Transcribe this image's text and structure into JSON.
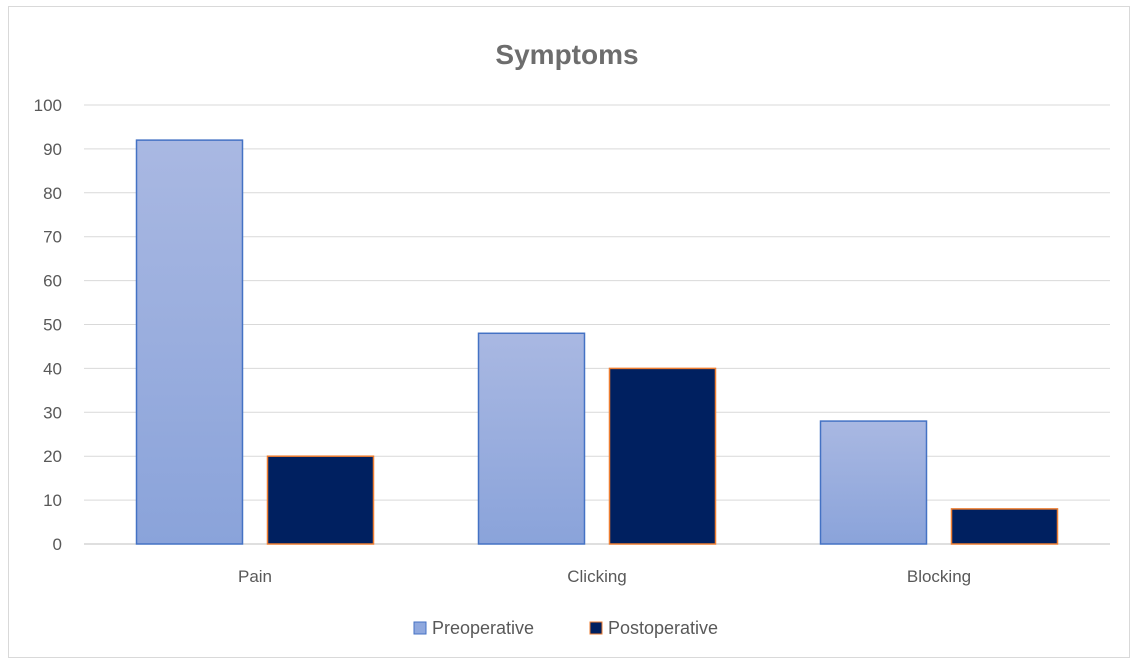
{
  "chart_data": {
    "type": "bar",
    "title": "Symptoms",
    "xlabel": "",
    "ylabel": "",
    "categories": [
      "Pain",
      "Clicking",
      "Blocking"
    ],
    "series": [
      {
        "name": "Preoperative",
        "values": [
          92,
          48,
          28
        ],
        "color": "#8fa8de",
        "border": "#4472c4"
      },
      {
        "name": "Postoperative",
        "values": [
          20,
          40,
          8
        ],
        "color": "#002060",
        "border": "#ed7d31"
      }
    ],
    "ylim": [
      0,
      100
    ],
    "yticks": [
      "0",
      "10",
      "20",
      "30",
      "40",
      "50",
      "60",
      "70",
      "80",
      "90",
      "100"
    ],
    "grid": true,
    "legend_position": "bottom"
  }
}
